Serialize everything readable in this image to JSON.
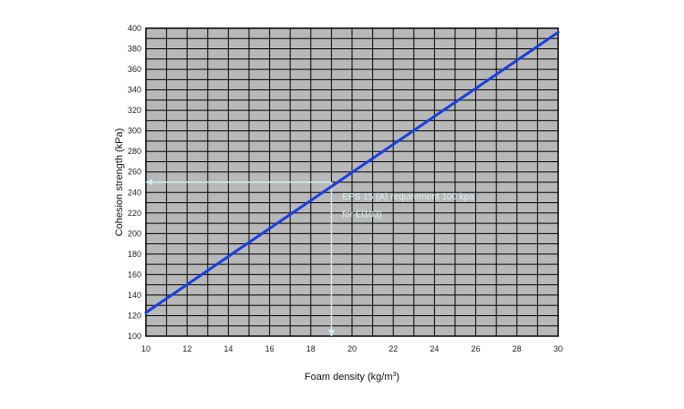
{
  "chart_data": {
    "type": "line",
    "title": "",
    "xlabel": "Foam density (kg/m",
    "xlabel_sup": "3",
    "xlabel_close": ")",
    "ylabel": "Cohesion strength (kPa)",
    "xlim": [
      10,
      30
    ],
    "ylim": [
      100,
      400
    ],
    "x_ticks": [
      10,
      12,
      14,
      16,
      18,
      20,
      22,
      24,
      26,
      28,
      30
    ],
    "y_ticks": [
      100,
      120,
      140,
      160,
      180,
      200,
      220,
      240,
      260,
      280,
      300,
      320,
      340,
      360,
      380,
      400
    ],
    "x_minor_step": 1,
    "y_minor_step": 10,
    "grid": true,
    "series": [
      {
        "x": [
          10,
          30
        ],
        "y": [
          123,
          396
        ],
        "color": "#1a3fe0"
      }
    ],
    "reference": {
      "x": 19,
      "y": 250,
      "color": "#cdeff2"
    },
    "annotation": {
      "line1": "EPS 15 (A) requirement 100 kpa",
      "line2": "for Ei103)"
    },
    "colors": {
      "plot_background": "#b8b8b8",
      "grid": "#000000"
    }
  }
}
